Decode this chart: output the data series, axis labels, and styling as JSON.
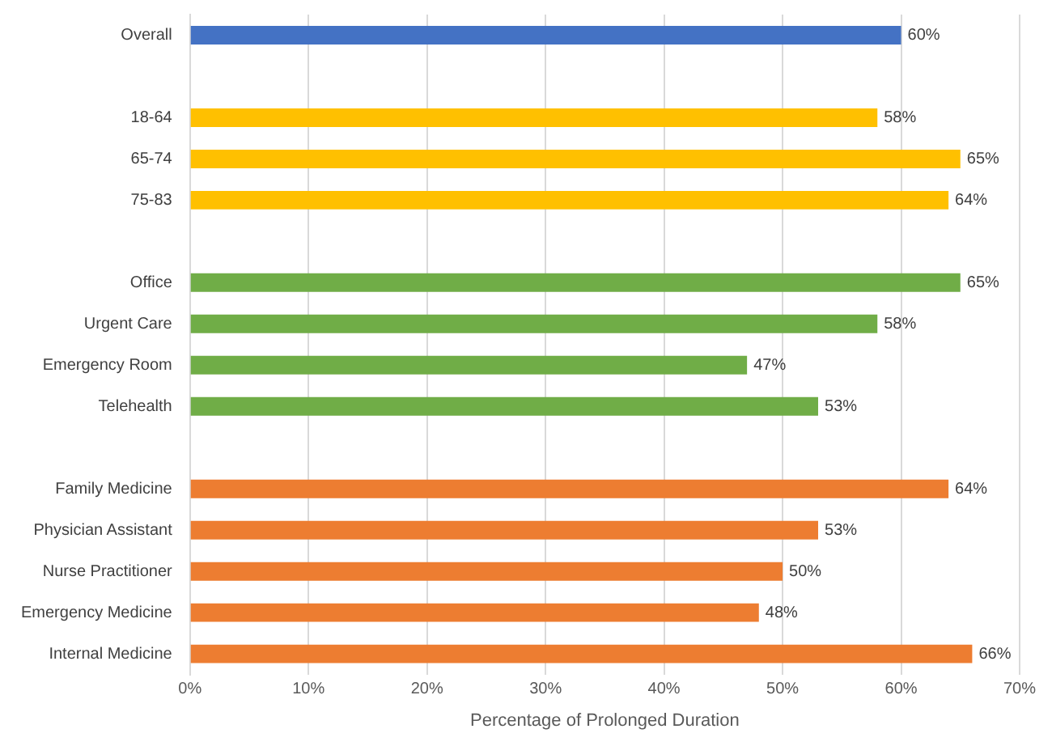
{
  "chart_data": {
    "type": "bar",
    "orientation": "horizontal",
    "xlabel": "Percentage of Prolonged Duration",
    "categories": [
      "Overall",
      null,
      "18-64",
      "65-74",
      "75-83",
      null,
      "Office",
      "Urgent Care",
      "Emergency Room",
      "Telehealth",
      null,
      "Family Medicine",
      "Physician Assistant",
      "Nurse Practitioner",
      "Emergency Medicine",
      "Internal Medicine"
    ],
    "values": [
      60,
      null,
      58,
      65,
      64,
      null,
      65,
      58,
      47,
      53,
      null,
      64,
      53,
      50,
      48,
      66
    ],
    "value_labels": [
      "60%",
      null,
      "58%",
      "65%",
      "64%",
      null,
      "65%",
      "58%",
      "47%",
      "53%",
      null,
      "64%",
      "53%",
      "50%",
      "48%",
      "66%"
    ],
    "colors": [
      "#4472c4",
      null,
      "#ffc000",
      "#ffc000",
      "#ffc000",
      null,
      "#70ad47",
      "#70ad47",
      "#70ad47",
      "#70ad47",
      null,
      "#ed7d31",
      "#ed7d31",
      "#ed7d31",
      "#ed7d31",
      "#ed7d31"
    ],
    "xlim": [
      0,
      70
    ],
    "xticks": [
      {
        "value": 0,
        "label": "0%"
      },
      {
        "value": 10,
        "label": "10%"
      },
      {
        "value": 20,
        "label": "20%"
      },
      {
        "value": 30,
        "label": "30%"
      },
      {
        "value": 40,
        "label": "40%"
      },
      {
        "value": 50,
        "label": "50%"
      },
      {
        "value": 60,
        "label": "60%"
      },
      {
        "value": 70,
        "label": "70%"
      }
    ],
    "grid": "x",
    "legend": false
  }
}
